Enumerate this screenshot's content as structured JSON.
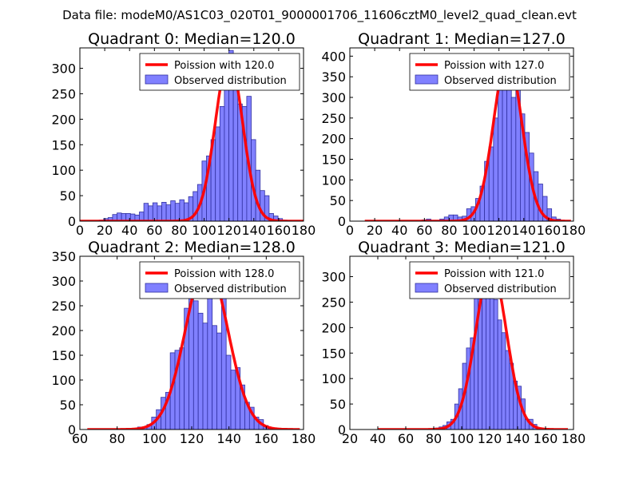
{
  "figure": {
    "suptitle": "Data file: modeM0/AS1C03_020T01_9000001706_11606cztM0_level2_quad_clean.evt"
  },
  "colors": {
    "hist_fill": "#8080ff",
    "hist_edge": "#3030a0",
    "poisson_line": "#ff0000",
    "axes": "#000000",
    "legend_border": "#000000"
  },
  "chart_data": [
    {
      "type": "bar",
      "title": "Quadrant 0: Median=120.0",
      "legend": [
        "Poission with 120.0",
        "Observed distribution"
      ],
      "legend_placement": "top-right",
      "xlim": [
        0,
        180
      ],
      "ylim": [
        0,
        340
      ],
      "xticks": [
        0,
        20,
        40,
        60,
        80,
        100,
        120,
        140,
        160,
        180
      ],
      "yticks": [
        0,
        50,
        100,
        150,
        200,
        250,
        300
      ],
      "bin_width": 3.6,
      "bins": [
        [
          15.5,
          2
        ],
        [
          19.1,
          5
        ],
        [
          22.7,
          7
        ],
        [
          26.3,
          13
        ],
        [
          29.9,
          16
        ],
        [
          33.5,
          15
        ],
        [
          37.1,
          15
        ],
        [
          40.7,
          14
        ],
        [
          44.3,
          12
        ],
        [
          47.9,
          18
        ],
        [
          51.5,
          35
        ],
        [
          55.1,
          30
        ],
        [
          58.7,
          36
        ],
        [
          62.3,
          30
        ],
        [
          65.9,
          37
        ],
        [
          69.5,
          32
        ],
        [
          73.1,
          40
        ],
        [
          76.7,
          35
        ],
        [
          80.3,
          42
        ],
        [
          83.9,
          36
        ],
        [
          87.5,
          48
        ],
        [
          91.1,
          58
        ],
        [
          94.7,
          72
        ],
        [
          98.3,
          118
        ],
        [
          101.9,
          128
        ],
        [
          105.5,
          160
        ],
        [
          109.1,
          185
        ],
        [
          112.7,
          225
        ],
        [
          116.3,
          275
        ],
        [
          119.9,
          335
        ],
        [
          123.5,
          260
        ],
        [
          127.1,
          230
        ],
        [
          130.7,
          225
        ],
        [
          134.3,
          245
        ],
        [
          137.9,
          160
        ],
        [
          141.5,
          100
        ],
        [
          145.1,
          60
        ],
        [
          148.7,
          50
        ],
        [
          152.3,
          15
        ],
        [
          155.9,
          10
        ],
        [
          159.5,
          5
        ],
        [
          163.1,
          2
        ],
        [
          166.7,
          1
        ]
      ],
      "poisson": {
        "mean": 120,
        "peak": 320,
        "x_range": [
          0,
          180
        ]
      }
    },
    {
      "type": "bar",
      "title": "Quadrant 1: Median=127.0",
      "legend": [
        "Poission with 127.0",
        "Observed distribution"
      ],
      "legend_placement": "top-right",
      "xlim": [
        0,
        180
      ],
      "ylim": [
        0,
        420
      ],
      "xticks": [
        0,
        20,
        40,
        60,
        80,
        100,
        120,
        140,
        160,
        180
      ],
      "yticks": [
        0,
        50,
        100,
        150,
        200,
        250,
        300,
        350,
        400
      ],
      "bin_width": 3.6,
      "bins": [
        [
          58,
          3
        ],
        [
          61.6,
          5
        ],
        [
          65.2,
          2
        ],
        [
          68.8,
          2
        ],
        [
          72.4,
          5
        ],
        [
          76,
          10
        ],
        [
          79.6,
          15
        ],
        [
          83.2,
          15
        ],
        [
          86.8,
          10
        ],
        [
          90.4,
          12
        ],
        [
          94,
          30
        ],
        [
          97.6,
          35
        ],
        [
          101.2,
          55
        ],
        [
          104.8,
          85
        ],
        [
          108.4,
          145
        ],
        [
          112,
          180
        ],
        [
          115.6,
          250
        ],
        [
          119.2,
          320
        ],
        [
          122.8,
          380
        ],
        [
          126.4,
          330
        ],
        [
          130,
          300
        ],
        [
          133.6,
          380
        ],
        [
          137.2,
          260
        ],
        [
          140.8,
          215
        ],
        [
          144.4,
          165
        ],
        [
          148,
          120
        ],
        [
          151.6,
          90
        ],
        [
          155.2,
          60
        ],
        [
          158.8,
          30
        ],
        [
          162.4,
          10
        ],
        [
          166,
          5
        ],
        [
          169.6,
          2
        ]
      ],
      "poisson": {
        "mean": 127,
        "peak": 400,
        "x_range": [
          12,
          178
        ]
      }
    },
    {
      "type": "bar",
      "title": "Quadrant 2: Median=128.0",
      "legend": [
        "Poission with 128.0",
        "Observed distribution"
      ],
      "legend_placement": "top-right",
      "xlim": [
        60,
        180
      ],
      "ylim": [
        0,
        350
      ],
      "xticks": [
        60,
        80,
        100,
        120,
        140,
        160,
        180
      ],
      "yticks": [
        0,
        50,
        100,
        150,
        200,
        250,
        300,
        350
      ],
      "bin_width": 2.5,
      "bins": [
        [
          91,
          5
        ],
        [
          93.5,
          5
        ],
        [
          96,
          10
        ],
        [
          98.5,
          25
        ],
        [
          101,
          40
        ],
        [
          103.5,
          65
        ],
        [
          106,
          75
        ],
        [
          108.5,
          155
        ],
        [
          111,
          160
        ],
        [
          113.5,
          165
        ],
        [
          116,
          245
        ],
        [
          118.5,
          265
        ],
        [
          121,
          260
        ],
        [
          123.5,
          235
        ],
        [
          126,
          215
        ],
        [
          128.5,
          330
        ],
        [
          131,
          210
        ],
        [
          133.5,
          195
        ],
        [
          136,
          275
        ],
        [
          138.5,
          150
        ],
        [
          141,
          120
        ],
        [
          143.5,
          125
        ],
        [
          146,
          90
        ],
        [
          148.5,
          55
        ],
        [
          151,
          45
        ],
        [
          153.5,
          25
        ],
        [
          156,
          20
        ],
        [
          158.5,
          8
        ],
        [
          161,
          3
        ]
      ],
      "poisson": {
        "mean": 128,
        "peak": 335,
        "x_range": [
          64,
          178
        ]
      }
    },
    {
      "type": "bar",
      "title": "Quadrant 3: Median=121.0",
      "legend": [
        "Poission with 121.0",
        "Observed distribution"
      ],
      "legend_placement": "top-right",
      "xlim": [
        20,
        180
      ],
      "ylim": [
        0,
        340
      ],
      "xticks": [
        20,
        40,
        60,
        80,
        100,
        120,
        140,
        160,
        180
      ],
      "yticks": [
        0,
        50,
        100,
        150,
        200,
        250,
        300
      ],
      "bin_width": 2.8,
      "bins": [
        [
          81,
          3
        ],
        [
          83.8,
          5
        ],
        [
          86.6,
          8
        ],
        [
          89.4,
          15
        ],
        [
          92.2,
          20
        ],
        [
          95,
          50
        ],
        [
          97.8,
          80
        ],
        [
          100.6,
          130
        ],
        [
          103.4,
          160
        ],
        [
          106.2,
          180
        ],
        [
          109,
          260
        ],
        [
          111.8,
          275
        ],
        [
          114.6,
          270
        ],
        [
          117.4,
          300
        ],
        [
          120.2,
          290
        ],
        [
          123,
          255
        ],
        [
          125.8,
          215
        ],
        [
          128.6,
          190
        ],
        [
          131.4,
          155
        ],
        [
          134.2,
          130
        ],
        [
          137,
          95
        ],
        [
          139.8,
          85
        ],
        [
          142.6,
          60
        ],
        [
          145.4,
          20
        ],
        [
          148.2,
          20
        ],
        [
          151,
          10
        ]
      ],
      "poisson": {
        "mean": 121,
        "peak": 318,
        "x_range": [
          40,
          176
        ]
      }
    }
  ]
}
